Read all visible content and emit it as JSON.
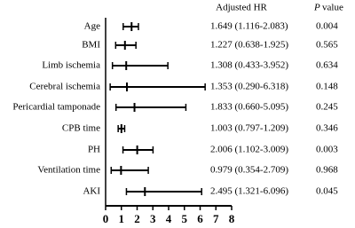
{
  "chart_data": {
    "type": "forest",
    "hr_header": "Adjusted HR",
    "p_header_italic": "P",
    "p_header_rest": "value",
    "categories": [
      "Age",
      "BMI",
      "Limb ischemia",
      "Cerebral ischemia",
      "Pericardial tamponade",
      "CPB time",
      "PH",
      "Ventilation time",
      "AKI"
    ],
    "values": [
      1.649,
      1.227,
      1.308,
      1.353,
      1.833,
      1.003,
      2.006,
      0.979,
      2.495
    ],
    "ci_lower": [
      1.116,
      0.638,
      0.433,
      0.29,
      0.66,
      0.797,
      1.102,
      0.354,
      1.321
    ],
    "ci_upper": [
      2.083,
      1.925,
      3.952,
      6.318,
      5.095,
      1.209,
      3.009,
      2.709,
      6.096
    ],
    "value_labels": [
      "1.649 (1.116-2.083)",
      "1.227 (0.638-1.925)",
      "1.308 (0.433-3.952)",
      "1.353 (0.290-6.318)",
      "1.833 (0.660-5.095)",
      "1.003 (0.797-1.209)",
      "2.006 (1.102-3.009)",
      "0.979 (0.354-2.709)",
      "2.495 (1.321-6.096)"
    ],
    "p_values": [
      "0.004",
      "0.565",
      "0.634",
      "0.148",
      "0.245",
      "0.346",
      "0.003",
      "0.968",
      "0.045"
    ],
    "xlim": [
      0,
      8
    ],
    "xticks": [
      0,
      1,
      2,
      3,
      4,
      5,
      6,
      7,
      8
    ],
    "color": "#000000"
  }
}
